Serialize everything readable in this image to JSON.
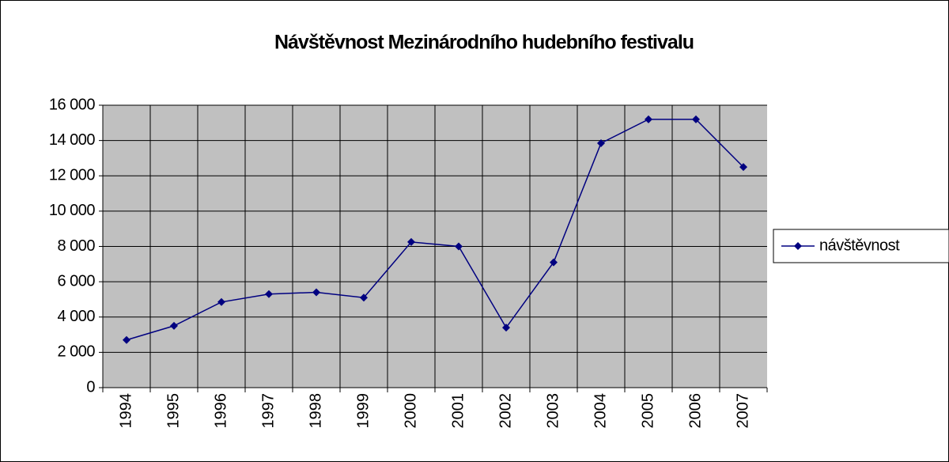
{
  "chart_data": {
    "type": "line",
    "title": "Návštěvnost Mezinárodního hudebního festivalu",
    "categories": [
      "1994",
      "1995",
      "1996",
      "1997",
      "1998",
      "1999",
      "2000",
      "2001",
      "2002",
      "2003",
      "2004",
      "2005",
      "2006",
      "2007"
    ],
    "series": [
      {
        "name": "návštěvnost",
        "color": "#000080",
        "values": [
          2700,
          3500,
          4850,
          5300,
          5400,
          5100,
          8250,
          8000,
          3400,
          7100,
          13850,
          15200,
          15200,
          12500
        ]
      }
    ],
    "ylim": [
      0,
      16000
    ],
    "yticks": [
      0,
      {
        "value": 2000,
        "label": "2 000"
      },
      {
        "value": 4000,
        "label": "4 000"
      },
      {
        "value": 6000,
        "label": "6 000"
      },
      {
        "value": 8000,
        "label": "8 000"
      },
      {
        "value": 10000,
        "label": "10 000"
      },
      {
        "value": 12000,
        "label": "12 000"
      },
      {
        "value": 14000,
        "label": "14 000"
      },
      {
        "value": 16000,
        "label": "16 000"
      }
    ],
    "grid": true,
    "legend": "right"
  }
}
